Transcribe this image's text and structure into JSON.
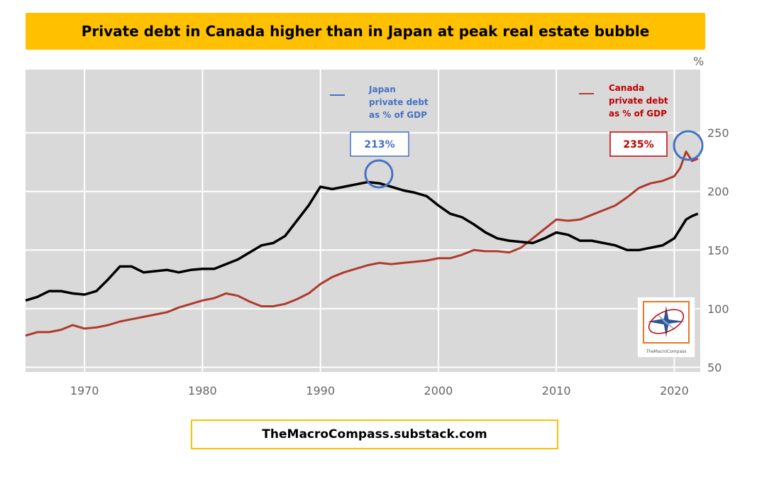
{
  "header": {
    "title": "Private debt in Canada higher than in Japan at peak real estate bubble"
  },
  "footer": {
    "source": "TheMacroCompass.substack.com"
  },
  "logo": {
    "text": "TheMacroCompass"
  },
  "chart_data": {
    "type": "line",
    "title": "Private debt in Canada higher than in Japan at peak real estate bubble",
    "unit_label": "%",
    "xlim": [
      1965.0,
      2022.2
    ],
    "ylim": [
      46,
      304
    ],
    "x_ticks": [
      "1970",
      "1980",
      "1990",
      "2000",
      "2010",
      "2020"
    ],
    "y_ticks": [
      "50",
      "100",
      "150",
      "200",
      "250"
    ],
    "grid": true,
    "series": [
      {
        "name": "Japan private debt as % of GDP",
        "color": "#000000",
        "x": [
          1965.0,
          1966.0,
          1967.0,
          1968.0,
          1969.0,
          1970.0,
          1971.0,
          1972.0,
          1973.0,
          1974.0,
          1975.0,
          1976.0,
          1977.0,
          1978.0,
          1979.0,
          1980.0,
          1981.0,
          1982.0,
          1983.0,
          1984.0,
          1985.0,
          1986.0,
          1987.0,
          1988.0,
          1989.0,
          1990.0,
          1991.0,
          1992.0,
          1993.0,
          1994.0,
          1995.0,
          1996.0,
          1997.0,
          1998.0,
          1999.0,
          2000.0,
          2001.0,
          2002.0,
          2003.0,
          2004.0,
          2005.0,
          2006.0,
          2007.0,
          2008.0,
          2009.0,
          2010.0,
          2011.0,
          2012.0,
          2013.0,
          2014.0,
          2015.0,
          2016.0,
          2017.0,
          2018.0,
          2019.0,
          2020.0,
          2020.5,
          2021.0,
          2021.5,
          2022.0
        ],
        "values": [
          107,
          110,
          115,
          115,
          113,
          112,
          115,
          125,
          136,
          136,
          131,
          132,
          133,
          131,
          133,
          134,
          134,
          138,
          142,
          148,
          154,
          156,
          162,
          175,
          188,
          204,
          202,
          204,
          206,
          208,
          207,
          204,
          201,
          199,
          196,
          188,
          181,
          178,
          172,
          165,
          160,
          158,
          157,
          156,
          160,
          165,
          163,
          158,
          158,
          156,
          154,
          150,
          150,
          152,
          154,
          160,
          168,
          176,
          179,
          181
        ],
        "peak_label": "213%"
      },
      {
        "name": "Canada private debt as % of GDP",
        "color": "#b03a2e",
        "x": [
          1965.0,
          1966.0,
          1967.0,
          1968.0,
          1969.0,
          1970.0,
          1971.0,
          1972.0,
          1973.0,
          1974.0,
          1975.0,
          1976.0,
          1977.0,
          1978.0,
          1979.0,
          1980.0,
          1981.0,
          1982.0,
          1983.0,
          1984.0,
          1985.0,
          1986.0,
          1987.0,
          1988.0,
          1989.0,
          1990.0,
          1991.0,
          1992.0,
          1993.0,
          1994.0,
          1995.0,
          1996.0,
          1997.0,
          1998.0,
          1999.0,
          2000.0,
          2001.0,
          2002.0,
          2003.0,
          2004.0,
          2005.0,
          2006.0,
          2007.0,
          2008.0,
          2009.0,
          2010.0,
          2011.0,
          2012.0,
          2013.0,
          2014.0,
          2015.0,
          2016.0,
          2017.0,
          2018.0,
          2019.0,
          2020.0,
          2020.5,
          2021.0,
          2021.5,
          2022.0
        ],
        "values": [
          77,
          80,
          80,
          82,
          86,
          83,
          84,
          86,
          89,
          91,
          93,
          95,
          97,
          101,
          104,
          107,
          109,
          113,
          111,
          106,
          102,
          102,
          104,
          108,
          113,
          121,
          127,
          131,
          134,
          137,
          139,
          138,
          139,
          140,
          141,
          143,
          143,
          146,
          150,
          149,
          149,
          148,
          152,
          160,
          168,
          176,
          175,
          176,
          180,
          184,
          188,
          195,
          203,
          207,
          209,
          213,
          220,
          234,
          226,
          228
        ],
        "peak_label": "235%"
      }
    ]
  }
}
